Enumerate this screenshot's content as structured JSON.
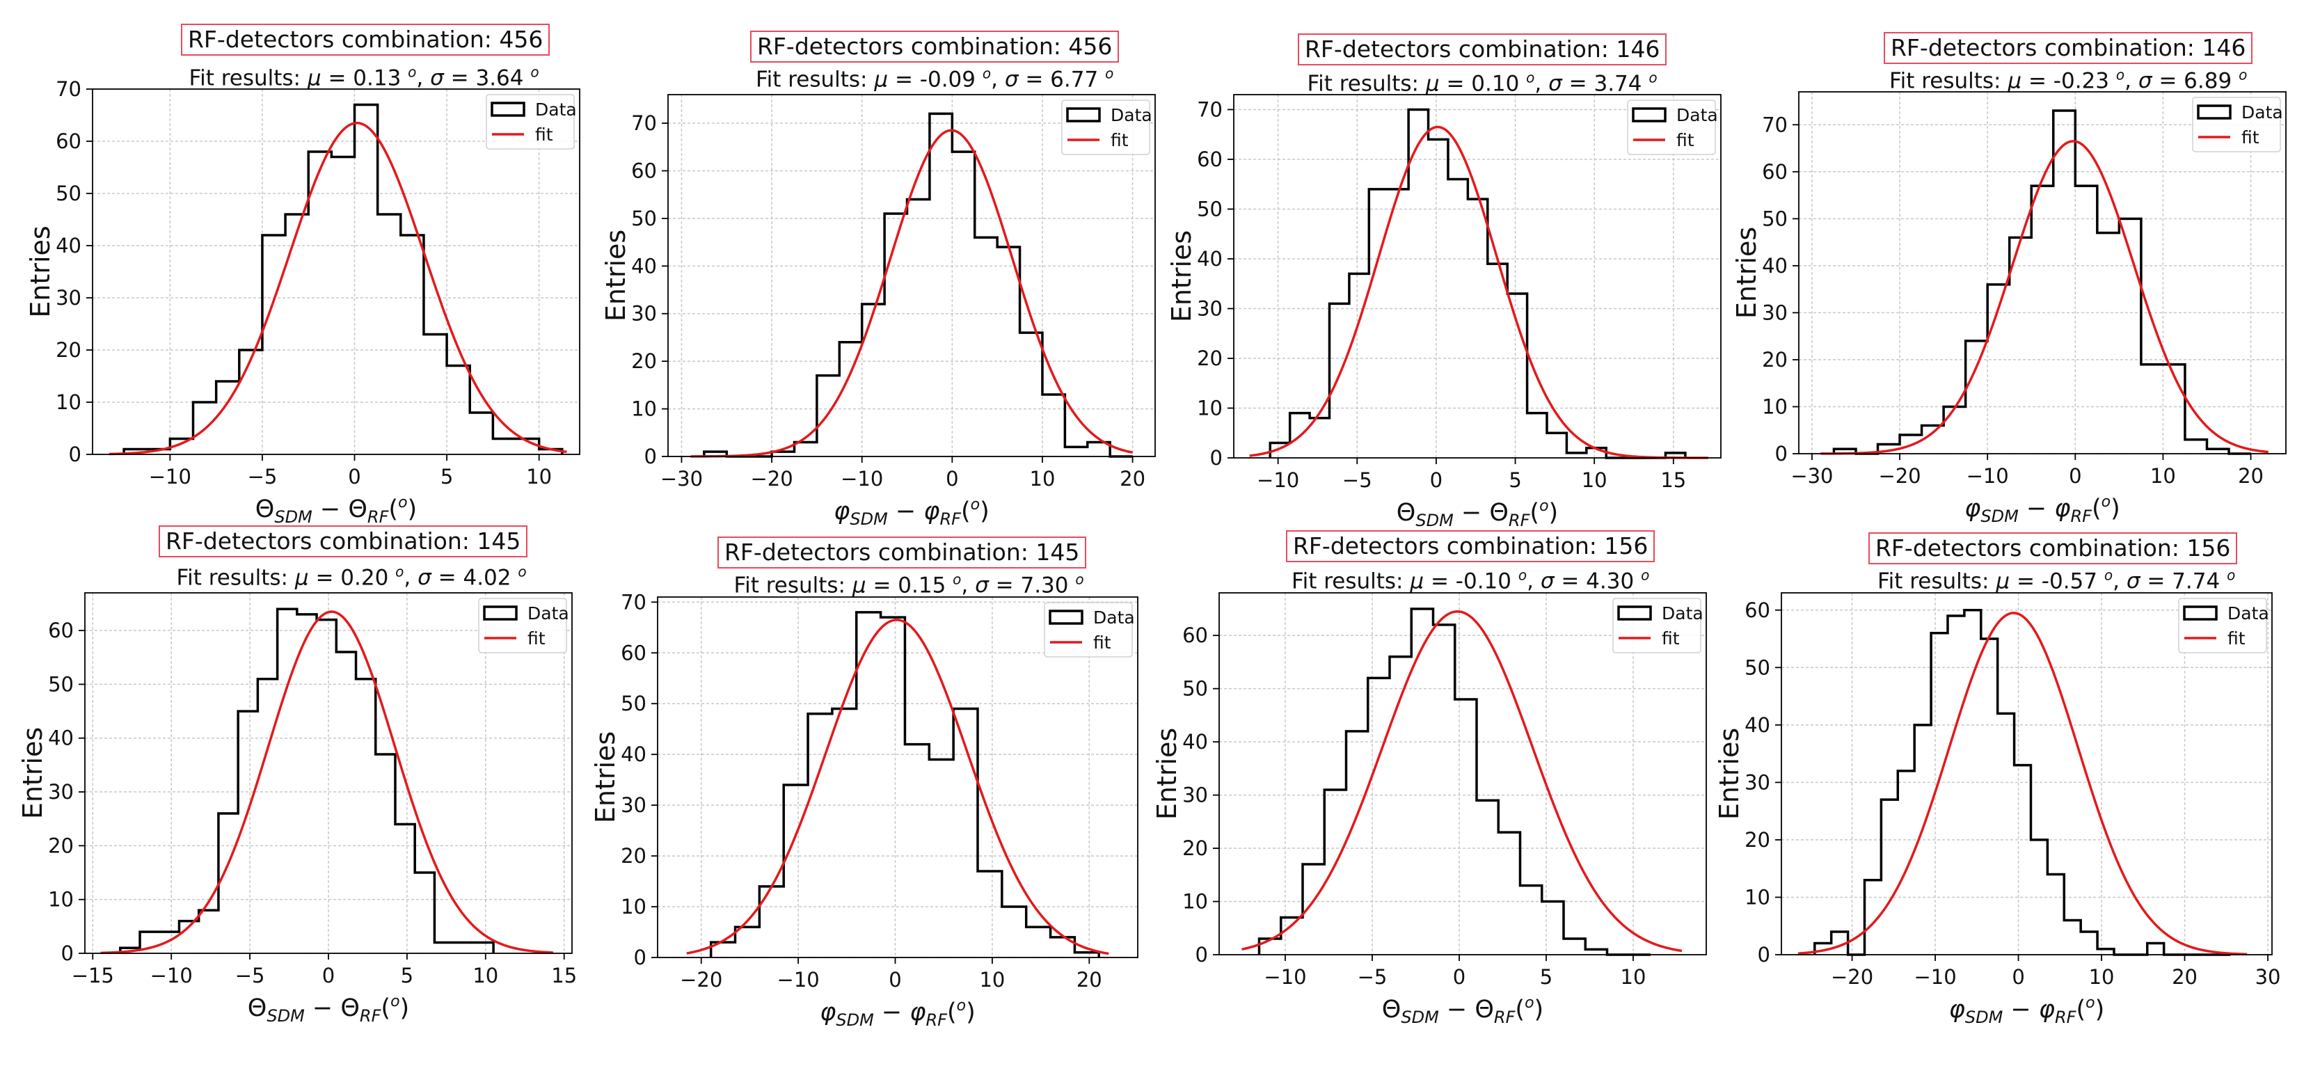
{
  "colors": {
    "data": "#000000",
    "fit": "#e31a1c",
    "title_border": "#e84a5f",
    "grid": "#c8c8c8"
  },
  "chart_data": [
    {
      "type": "histogram",
      "title": "RF-detectors combination: 456",
      "fit": {
        "label": "Fit results:",
        "mu": "0.13",
        "sigma": "3.64",
        "amp": 63.5,
        "mu_val": 0.13,
        "sigma_val": 3.64
      },
      "xlabel": "Θ_SDM − Θ_RF(°)",
      "xlabel_main": "Θ",
      "xlabel_sub1": "SDM",
      "xlabel_sub2": "RF",
      "xlabel_unit": "o",
      "ylabel": "Entries",
      "xlim": [
        -14.2,
        12.2
      ],
      "ylim": [
        0,
        70
      ],
      "xticks": [
        -10,
        -5,
        0,
        5,
        10
      ],
      "yticks": [
        0,
        10,
        20,
        30,
        40,
        50,
        60,
        70
      ],
      "fit_range": [
        -13.3,
        11.5
      ],
      "bin_edges": [
        -12.5,
        -11.25,
        -10,
        -8.75,
        -7.5,
        -6.25,
        -5,
        -3.75,
        -2.5,
        -1.25,
        0,
        1.25,
        2.5,
        3.75,
        5,
        6.25,
        7.5,
        8.75,
        10,
        11.25
      ],
      "counts": [
        1,
        1,
        3,
        10,
        14,
        20,
        42,
        46,
        58,
        57,
        67,
        46,
        42,
        23,
        17,
        8,
        3,
        3,
        1
      ],
      "legend": [
        "Data",
        "fit"
      ]
    },
    {
      "type": "histogram",
      "title": "RF-detectors combination: 456",
      "fit": {
        "label": "Fit results:",
        "mu": "-0.09",
        "sigma": "6.77",
        "amp": 68.5,
        "mu_val": -0.09,
        "sigma_val": 6.77
      },
      "xlabel": "φ_SDM − φ_RF(°)",
      "xlabel_main": "φ",
      "xlabel_sub1": "SDM",
      "xlabel_sub2": "RF",
      "xlabel_unit": "o",
      "ylabel": "Entries",
      "xlim": [
        -31.5,
        22.5
      ],
      "ylim": [
        0,
        76
      ],
      "xticks": [
        -30,
        -20,
        -10,
        0,
        10,
        20
      ],
      "yticks": [
        0,
        10,
        20,
        30,
        40,
        50,
        60,
        70
      ],
      "fit_range": [
        -29,
        20
      ],
      "bin_edges": [
        -27.5,
        -25,
        -22.5,
        -20,
        -17.5,
        -15,
        -12.5,
        -10,
        -7.5,
        -5,
        -2.5,
        0,
        2.5,
        5,
        7.5,
        10,
        12.5,
        15,
        17.5,
        20
      ],
      "counts": [
        1,
        0,
        0,
        1,
        3,
        17,
        24,
        32,
        51,
        54,
        72,
        64,
        46,
        44,
        26,
        13,
        2,
        3,
        0
      ],
      "legend": [
        "Data",
        "fit"
      ]
    },
    {
      "type": "histogram",
      "title": "RF-detectors combination: 146",
      "fit": {
        "label": "Fit results:",
        "mu": "0.10",
        "sigma": "3.74",
        "amp": 66.5,
        "mu_val": 0.1,
        "sigma_val": 3.74
      },
      "xlabel": "Θ_SDM − Θ_RF(°)",
      "xlabel_main": "Θ",
      "xlabel_sub1": "SDM",
      "xlabel_sub2": "RF",
      "xlabel_unit": "o",
      "ylabel": "Entries",
      "xlim": [
        -12.8,
        18.0
      ],
      "ylim": [
        0,
        73
      ],
      "xticks": [
        -10,
        -5,
        0,
        5,
        10,
        15
      ],
      "yticks": [
        0,
        10,
        20,
        30,
        40,
        50,
        60,
        70
      ],
      "fit_range": [
        -11.8,
        17.2
      ],
      "bin_edges": [
        -10.5,
        -9.25,
        -8,
        -6.75,
        -5.5,
        -4.25,
        -3,
        -1.75,
        -0.5,
        0.75,
        2,
        3.25,
        4.5,
        5.75,
        7,
        8.25,
        9.5,
        10.75,
        12,
        13.25,
        14.5,
        15.75
      ],
      "counts": [
        3,
        9,
        8,
        31,
        37,
        54,
        54,
        70,
        64,
        56,
        52,
        39,
        33,
        9,
        5,
        1,
        2,
        0,
        0,
        0,
        1
      ],
      "legend": [
        "Data",
        "fit"
      ]
    },
    {
      "type": "histogram",
      "title": "RF-detectors combination: 146",
      "fit": {
        "label": "Fit results:",
        "mu": "-0.23",
        "sigma": "6.89",
        "amp": 66.5,
        "mu_val": -0.23,
        "sigma_val": 6.89
      },
      "xlabel": "φ_SDM − φ_RF(°)",
      "xlabel_main": "φ",
      "xlabel_sub1": "SDM",
      "xlabel_sub2": "RF",
      "xlabel_unit": "o",
      "ylabel": "Entries",
      "xlim": [
        -31.5,
        24.0
      ],
      "ylim": [
        0,
        77
      ],
      "xticks": [
        -30,
        -20,
        -10,
        0,
        10,
        20
      ],
      "yticks": [
        0,
        10,
        20,
        30,
        40,
        50,
        60,
        70
      ],
      "fit_range": [
        -29,
        22
      ],
      "bin_edges": [
        -27.5,
        -25,
        -22.5,
        -20,
        -17.5,
        -15,
        -12.5,
        -10,
        -7.5,
        -5,
        -2.5,
        0,
        2.5,
        5,
        7.5,
        10,
        12.5,
        15,
        17.5,
        20
      ],
      "counts": [
        1,
        0,
        2,
        4,
        6,
        10,
        24,
        36,
        46,
        57,
        73,
        57,
        47,
        50,
        19,
        19,
        3,
        1,
        0
      ],
      "legend": [
        "Data",
        "fit"
      ]
    },
    {
      "type": "histogram",
      "title": "RF-detectors combination: 145",
      "fit": {
        "label": "Fit results:",
        "mu": "0.20",
        "sigma": "4.02",
        "amp": 63.5,
        "mu_val": 0.2,
        "sigma_val": 4.02
      },
      "xlabel": "Θ_SDM − Θ_RF(°)",
      "xlabel_main": "Θ",
      "xlabel_sub1": "SDM",
      "xlabel_sub2": "RF",
      "xlabel_unit": "o",
      "ylabel": "Entries",
      "xlim": [
        -15.5,
        15.5
      ],
      "ylim": [
        0,
        67
      ],
      "xticks": [
        -15,
        -10,
        -5,
        0,
        5,
        10,
        15
      ],
      "yticks": [
        0,
        10,
        20,
        30,
        40,
        50,
        60
      ],
      "fit_range": [
        -14.5,
        14.3
      ],
      "bin_edges": [
        -13.25,
        -12,
        -10.75,
        -9.5,
        -8.25,
        -7,
        -5.75,
        -4.5,
        -3.25,
        -2,
        -0.75,
        0.5,
        1.75,
        3,
        4.25,
        5.5,
        6.75,
        8,
        9.25,
        10.5
      ],
      "counts": [
        1,
        4,
        4,
        6,
        8,
        26,
        45,
        51,
        64,
        63,
        62,
        56,
        51,
        37,
        24,
        15,
        2,
        2,
        2
      ],
      "legend": [
        "Data",
        "fit"
      ]
    },
    {
      "type": "histogram",
      "title": "RF-detectors combination: 145",
      "fit": {
        "label": "Fit results:",
        "mu": "0.15",
        "sigma": "7.30",
        "amp": 66.5,
        "mu_val": 0.15,
        "sigma_val": 7.3
      },
      "xlabel": "φ_SDM − φ_RF(°)",
      "xlabel_main": "φ",
      "xlabel_sub1": "SDM",
      "xlabel_sub2": "RF",
      "xlabel_unit": "o",
      "ylabel": "Entries",
      "xlim": [
        -24.5,
        25.0
      ],
      "ylim": [
        0,
        71
      ],
      "xticks": [
        -20,
        -10,
        0,
        10,
        20
      ],
      "yticks": [
        0,
        10,
        20,
        30,
        40,
        50,
        60,
        70
      ],
      "fit_range": [
        -21.5,
        22
      ],
      "bin_edges": [
        -19,
        -16.5,
        -14,
        -11.5,
        -9,
        -6.5,
        -4,
        -1.5,
        1,
        3.5,
        6,
        8.5,
        11,
        13.5,
        16,
        18.5,
        21
      ],
      "counts": [
        3,
        6,
        14,
        34,
        48,
        49,
        68,
        67,
        42,
        39,
        49,
        17,
        10,
        6,
        4,
        1
      ],
      "legend": [
        "Data",
        "fit"
      ]
    },
    {
      "type": "histogram",
      "title": "RF-detectors combination: 156",
      "fit": {
        "label": "Fit results:",
        "mu": "-0.10",
        "sigma": "4.30",
        "amp": 64.5,
        "mu_val": -0.1,
        "sigma_val": 4.3
      },
      "xlabel": "Θ_SDM − Θ_RF(°)",
      "xlabel_main": "Θ",
      "xlabel_sub1": "SDM",
      "xlabel_sub2": "RF",
      "xlabel_unit": "o",
      "ylabel": "Entries",
      "xlim": [
        -13.8,
        14.2
      ],
      "ylim": [
        0,
        68
      ],
      "xticks": [
        -10,
        -5,
        0,
        5,
        10
      ],
      "yticks": [
        0,
        10,
        20,
        30,
        40,
        50,
        60
      ],
      "fit_range": [
        -12.5,
        12.8
      ],
      "bin_edges": [
        -11.5,
        -10.25,
        -9,
        -7.75,
        -6.5,
        -5.25,
        -4,
        -2.75,
        -1.5,
        -0.25,
        1,
        2.25,
        3.5,
        4.75,
        6,
        7.25,
        8.5,
        9.75,
        11
      ],
      "counts": [
        3,
        7,
        17,
        31,
        42,
        52,
        56,
        65,
        62,
        48,
        29,
        23,
        13,
        10,
        3,
        1,
        0,
        0
      ],
      "legend": [
        "Data",
        "fit"
      ]
    },
    {
      "type": "histogram",
      "title": "RF-detectors combination: 156",
      "fit": {
        "label": "Fit results:",
        "mu": "-0.57",
        "sigma": "7.74",
        "amp": 59.5,
        "mu_val": -0.57,
        "sigma_val": 7.74
      },
      "xlabel": "φ_SDM − φ_RF(°)",
      "xlabel_main": "φ",
      "xlabel_sub1": "SDM",
      "xlabel_sub2": "RF",
      "xlabel_unit": "o",
      "ylabel": "Entries",
      "xlim": [
        -28.5,
        30.5
      ],
      "ylim": [
        0,
        63
      ],
      "xticks": [
        -20,
        -10,
        0,
        10,
        20,
        30
      ],
      "yticks": [
        0,
        10,
        20,
        30,
        40,
        50,
        60
      ],
      "fit_range": [
        -26.5,
        27.5
      ],
      "bin_edges": [
        -24.5,
        -22.5,
        -20.5,
        -18.5,
        -16.5,
        -14.5,
        -12.5,
        -10.5,
        -8.5,
        -6.5,
        -4.5,
        -2.5,
        -0.5,
        1.5,
        3.5,
        5.5,
        7.5,
        9.5,
        11.5,
        13.5,
        15.5,
        17.5,
        19.5,
        21.5,
        23.5,
        25.5
      ],
      "counts": [
        2,
        4,
        0,
        13,
        27,
        32,
        40,
        56,
        59,
        60,
        55,
        42,
        33,
        20,
        14,
        6,
        4,
        1,
        0,
        0,
        2,
        0,
        0,
        0,
        0
      ],
      "legend": [
        "Data",
        "fit"
      ]
    }
  ]
}
